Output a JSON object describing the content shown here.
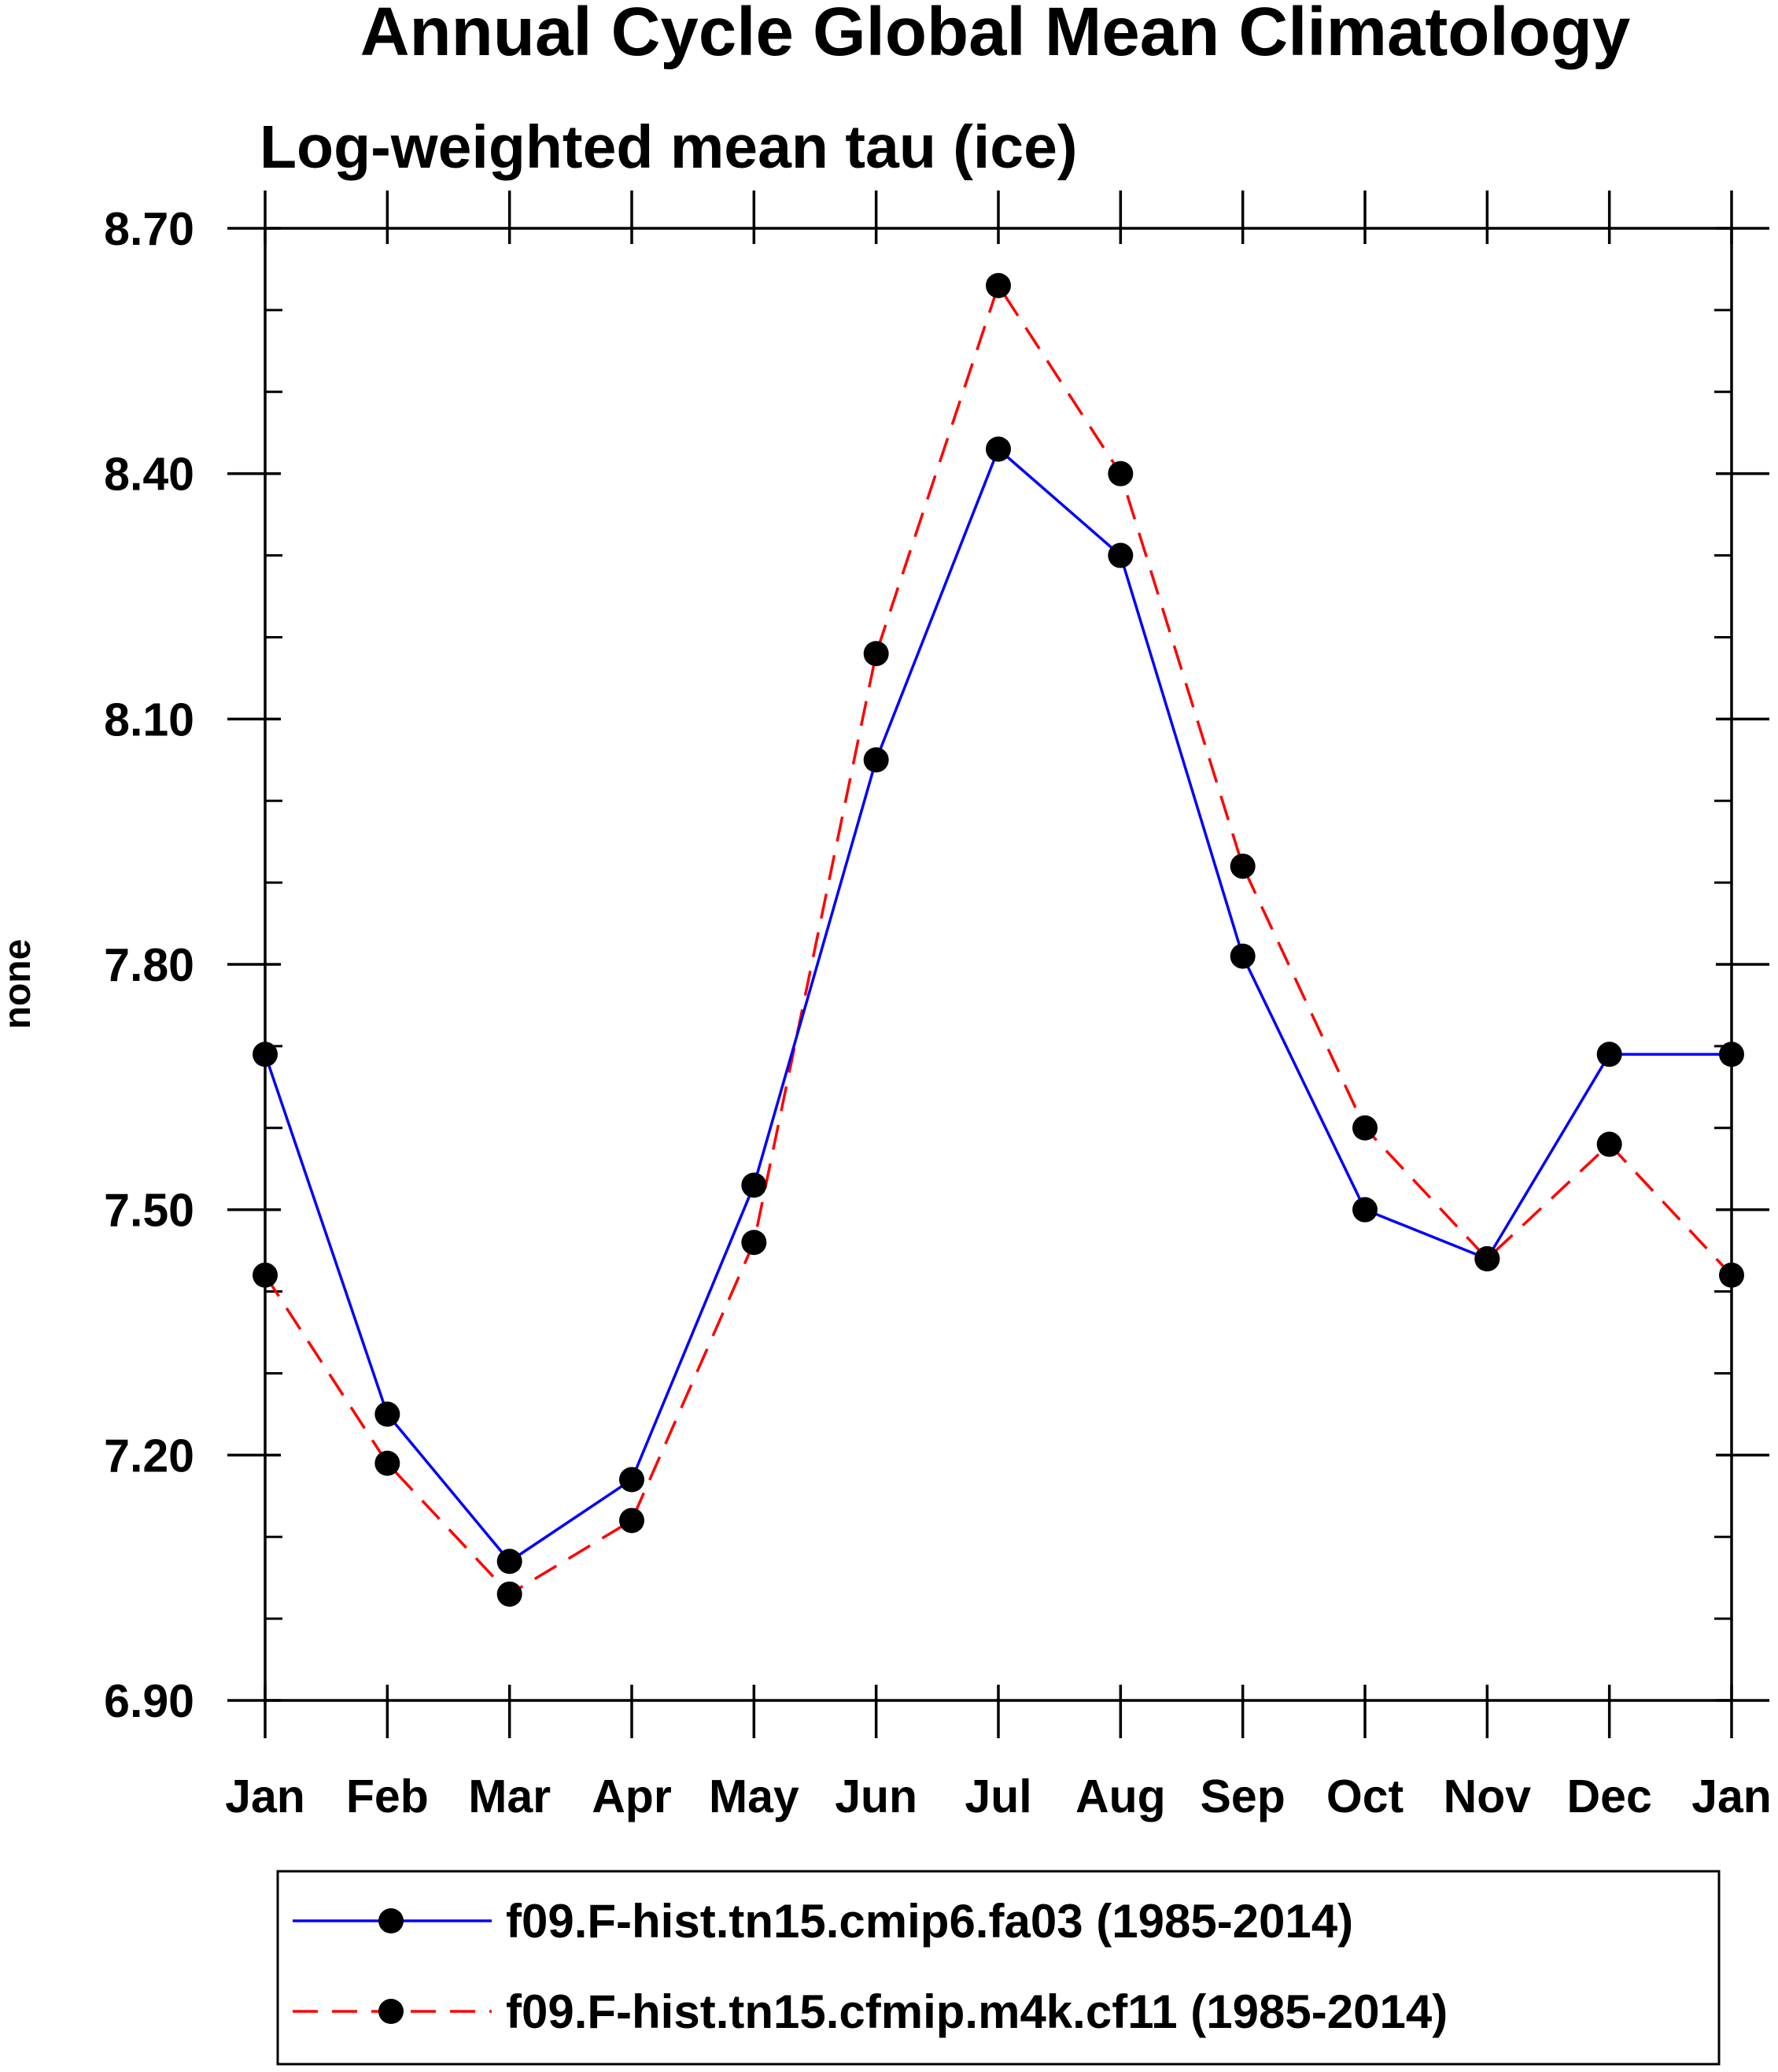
{
  "chart_data": {
    "type": "line",
    "title": "Annual Cycle Global Mean Climatology",
    "subtitle": "Log-weighted mean tau (ice)",
    "ylabel": "none",
    "xlabel": "",
    "categories": [
      "Jan",
      "Feb",
      "Mar",
      "Apr",
      "May",
      "Jun",
      "Jul",
      "Aug",
      "Sep",
      "Oct",
      "Nov",
      "Dec",
      "Jan"
    ],
    "ylim": [
      6.9,
      8.7
    ],
    "yticks": [
      "6.90",
      "7.20",
      "7.50",
      "7.80",
      "8.10",
      "8.40",
      "8.70"
    ],
    "grid": false,
    "legend_position": "bottom",
    "series": [
      {
        "name": "f09.F-hist.tn15.cmip6.fa03 (1985-2014)",
        "color": "#0000ff",
        "style": "solid",
        "marker": "filled-circle",
        "values": [
          7.69,
          7.25,
          7.07,
          7.17,
          7.53,
          8.05,
          8.43,
          8.3,
          7.81,
          7.5,
          7.44,
          7.69,
          7.69
        ]
      },
      {
        "name": "f09.F-hist.tn15.cfmip.m4k.cf11 (1985-2014)",
        "color": "#ff0000",
        "style": "dashed",
        "marker": "filled-circle",
        "values": [
          7.42,
          7.19,
          7.03,
          7.12,
          7.46,
          8.18,
          8.63,
          8.4,
          7.92,
          7.6,
          7.44,
          7.58,
          7.42
        ]
      }
    ]
  }
}
